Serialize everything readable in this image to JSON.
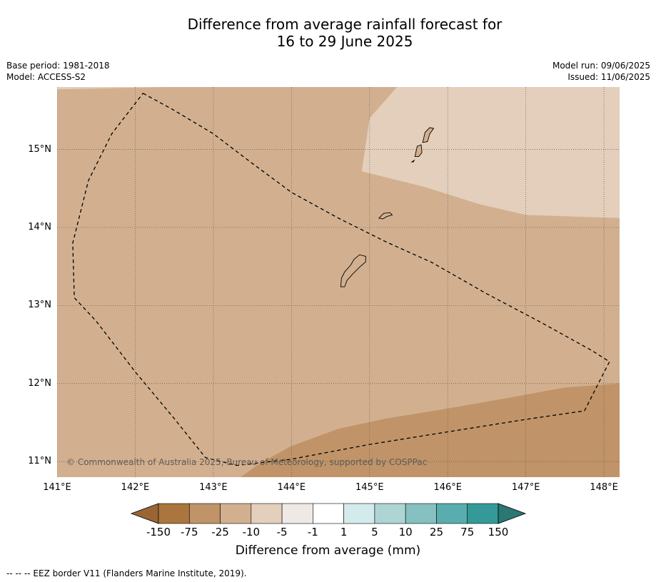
{
  "title": {
    "line1": "Difference from average rainfall forecast for",
    "line2": "16 to 29 June 2025"
  },
  "meta_left": {
    "base_period": "Base period: 1981-2018",
    "model": "Model: ACCESS-S2"
  },
  "meta_right": {
    "model_run": "Model run: 09/06/2025",
    "issued": "Issued: 11/06/2025"
  },
  "map": {
    "extent": {
      "lon_min": 141.0,
      "lon_max": 148.2,
      "lat_min": 10.8,
      "lat_max": 15.8
    },
    "lat_ticks": [
      {
        "value": 15,
        "label": "15°N"
      },
      {
        "value": 14,
        "label": "14°N"
      },
      {
        "value": 13,
        "label": "13°N"
      },
      {
        "value": 12,
        "label": "12°N"
      },
      {
        "value": 11,
        "label": "11°N"
      }
    ],
    "lon_ticks": [
      {
        "value": 141,
        "label": "141°E"
      },
      {
        "value": 142,
        "label": "142°E"
      },
      {
        "value": 143,
        "label": "143°E"
      },
      {
        "value": 144,
        "label": "144°E"
      },
      {
        "value": 145,
        "label": "145°E"
      },
      {
        "value": 146,
        "label": "146°E"
      },
      {
        "value": 147,
        "label": "147°E"
      },
      {
        "value": 148,
        "label": "148°E"
      }
    ],
    "gridlines": true,
    "base_fill_color": "#d2b08f",
    "zones": [
      {
        "name": "-5 to -10 mm zone (northeast)",
        "color": "#e3cfbc",
        "polygon": [
          [
            145.35,
            15.8
          ],
          [
            148.2,
            15.8
          ],
          [
            148.2,
            14.12
          ],
          [
            147.0,
            14.16
          ],
          [
            146.4,
            14.3
          ],
          [
            145.7,
            14.52
          ],
          [
            144.9,
            14.72
          ],
          [
            145.0,
            15.4
          ]
        ]
      },
      {
        "name": "-5 to -10 mm zone (northwest corner)",
        "color": "#e3cfbc",
        "polygon": [
          [
            141.0,
            15.8
          ],
          [
            142.4,
            15.8
          ],
          [
            141.0,
            15.77
          ]
        ]
      },
      {
        "name": "-25 to -75 mm zone (southeast)",
        "color": "#c09468",
        "polygon": [
          [
            143.35,
            10.8
          ],
          [
            148.2,
            10.8
          ],
          [
            148.2,
            12.0
          ],
          [
            147.5,
            11.95
          ],
          [
            146.8,
            11.82
          ],
          [
            146.0,
            11.68
          ],
          [
            145.2,
            11.55
          ],
          [
            144.6,
            11.42
          ],
          [
            144.0,
            11.2
          ],
          [
            143.6,
            10.98
          ]
        ]
      }
    ],
    "islands": [
      {
        "name": "Guam",
        "polygon": [
          [
            144.63,
            13.24
          ],
          [
            144.64,
            13.35
          ],
          [
            144.68,
            13.43
          ],
          [
            144.76,
            13.52
          ],
          [
            144.8,
            13.59
          ],
          [
            144.87,
            13.65
          ],
          [
            144.95,
            13.63
          ],
          [
            144.95,
            13.56
          ],
          [
            144.87,
            13.49
          ],
          [
            144.78,
            13.4
          ],
          [
            144.71,
            13.32
          ],
          [
            144.68,
            13.24
          ]
        ]
      },
      {
        "name": "Rota",
        "polygon": [
          [
            145.12,
            14.12
          ],
          [
            145.18,
            14.18
          ],
          [
            145.26,
            14.19
          ],
          [
            145.29,
            14.16
          ],
          [
            145.22,
            14.14
          ],
          [
            145.17,
            14.11
          ]
        ]
      },
      {
        "name": "Tinian",
        "polygon": [
          [
            145.58,
            14.91
          ],
          [
            145.61,
            15.04
          ],
          [
            145.66,
            15.06
          ],
          [
            145.67,
            14.96
          ],
          [
            145.63,
            14.91
          ]
        ]
      },
      {
        "name": "Saipan",
        "polygon": [
          [
            145.68,
            15.09
          ],
          [
            145.71,
            15.22
          ],
          [
            145.77,
            15.28
          ],
          [
            145.82,
            15.27
          ],
          [
            145.77,
            15.2
          ],
          [
            145.74,
            15.1
          ]
        ]
      },
      {
        "name": "Aguijan",
        "polygon": [
          [
            145.54,
            14.84
          ],
          [
            145.57,
            14.86
          ],
          [
            145.56,
            14.84
          ]
        ]
      }
    ],
    "eez_border": [
      [
        142.1,
        15.72
      ],
      [
        142.5,
        15.5
      ],
      [
        143.0,
        15.2
      ],
      [
        143.5,
        14.82
      ],
      [
        144.0,
        14.45
      ],
      [
        144.6,
        14.12
      ],
      [
        145.2,
        13.82
      ],
      [
        145.8,
        13.55
      ],
      [
        146.5,
        13.15
      ],
      [
        147.2,
        12.78
      ],
      [
        147.85,
        12.42
      ],
      [
        148.07,
        12.28
      ],
      [
        147.75,
        11.65
      ],
      [
        147.0,
        11.54
      ],
      [
        146.0,
        11.38
      ],
      [
        145.0,
        11.22
      ],
      [
        144.0,
        11.03
      ],
      [
        143.3,
        10.95
      ],
      [
        142.9,
        11.05
      ],
      [
        142.5,
        11.55
      ],
      [
        142.0,
        12.15
      ],
      [
        141.5,
        12.8
      ],
      [
        141.22,
        13.1
      ],
      [
        141.2,
        13.8
      ],
      [
        141.4,
        14.6
      ],
      [
        141.7,
        15.2
      ],
      [
        142.1,
        15.72
      ]
    ],
    "copyright": "© Commonwealth of Australia 2025, Bureau of Meteorology, supported by COSPPac"
  },
  "legend": {
    "title": "Difference from average (mm)",
    "tick_labels": [
      "-150",
      "-75",
      "-25",
      "-10",
      "-5",
      "-1",
      "1",
      "5",
      "10",
      "25",
      "75",
      "150"
    ],
    "under_color": "#9a6535",
    "over_color": "#2a7774",
    "colors": [
      "#aa753e",
      "#c09468",
      "#d2b08f",
      "#e3cfbc",
      "#efe9e5",
      "#ffffff",
      "#d3ebeb",
      "#acd5d3",
      "#86c0c0",
      "#59adae",
      "#349a99"
    ]
  },
  "footnote": "--  --  -- EEZ border V11 (Flanders Marine Institute, 2019)."
}
